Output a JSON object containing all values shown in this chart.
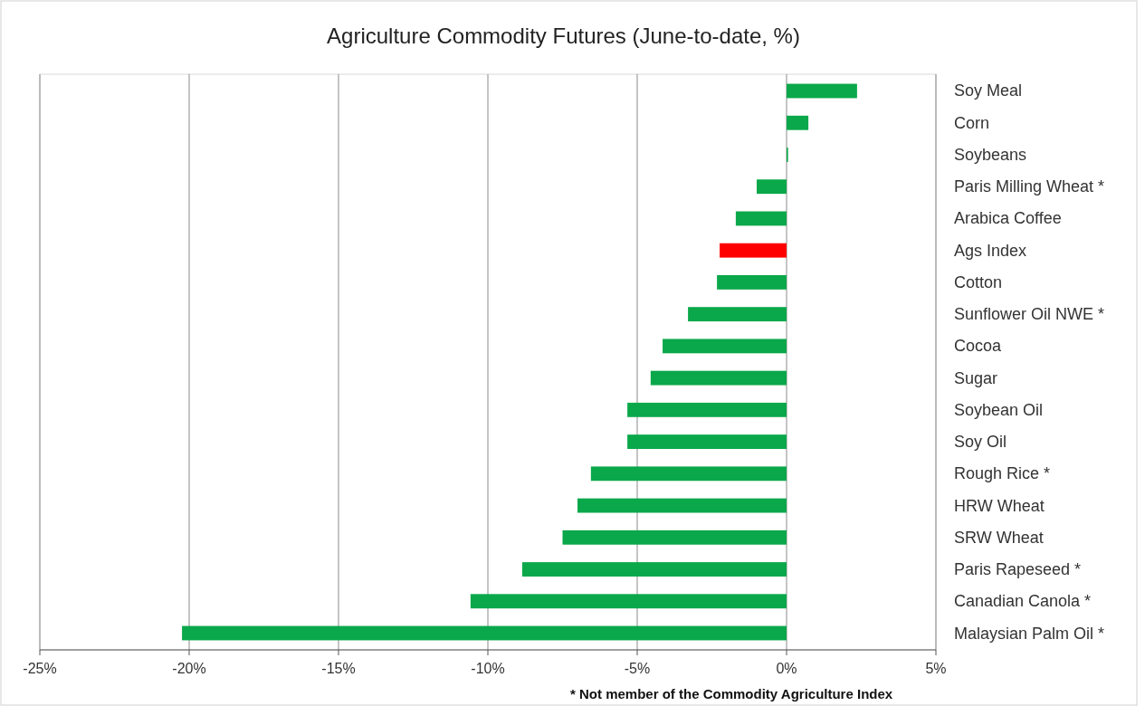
{
  "chart_data": {
    "type": "bar",
    "orientation": "horizontal",
    "title": "Agriculture Commodity Futures (June-to-date, %)",
    "categories": [
      "Soy Meal",
      "Corn",
      "Soybeans",
      "Paris Milling Wheat *",
      "Arabica Coffee",
      "Ags Index",
      "Cotton",
      "Sunflower Oil NWE *",
      "Cocoa",
      "Sugar",
      "Soybean Oil",
      "Soy Oil",
      "Rough Rice *",
      "HRW Wheat",
      "SRW Wheat",
      "Paris Rapeseed *",
      "Canadian Canola *",
      "Malaysian Palm Oil *"
    ],
    "values": [
      2.36,
      0.73,
      0.05,
      -1.0,
      -1.7,
      -2.24,
      -2.33,
      -3.3,
      -4.15,
      -4.55,
      -5.33,
      -5.33,
      -6.55,
      -7.0,
      -7.5,
      -8.85,
      -10.58,
      -20.24
    ],
    "colors": [
      "#0aa84a",
      "#0aa84a",
      "#0aa84a",
      "#0aa84a",
      "#0aa84a",
      "#ff0000",
      "#0aa84a",
      "#0aa84a",
      "#0aa84a",
      "#0aa84a",
      "#0aa84a",
      "#0aa84a",
      "#0aa84a",
      "#0aa84a",
      "#0aa84a",
      "#0aa84a",
      "#0aa84a",
      "#0aa84a"
    ],
    "xlim": [
      -25,
      5
    ],
    "xticks": [
      {
        "value": -25,
        "label": "-25%"
      },
      {
        "value": -20,
        "label": "-20%"
      },
      {
        "value": -15,
        "label": "-15%"
      },
      {
        "value": -10,
        "label": "-10%"
      },
      {
        "value": -5,
        "label": "-5%"
      },
      {
        "value": 0,
        "label": "0%"
      },
      {
        "value": 5,
        "label": "5%"
      }
    ],
    "grid": "x",
    "annotations": [
      "* Not member of the Commodity Agriculture Index"
    ]
  }
}
